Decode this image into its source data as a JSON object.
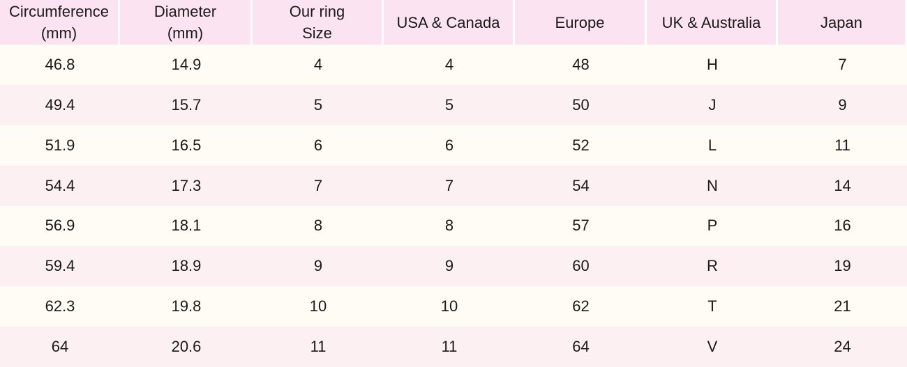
{
  "table": {
    "headers": [
      [
        "Circumference",
        "(mm)"
      ],
      [
        "Diameter",
        "(mm)"
      ],
      [
        "Our ring",
        "Size"
      ],
      [
        "USA & Canada"
      ],
      [
        "Europe"
      ],
      [
        "UK & Australia"
      ],
      [
        "Japan"
      ]
    ],
    "rows": [
      [
        46.8,
        14.9,
        4,
        4,
        48,
        "H",
        7
      ],
      [
        49.4,
        15.7,
        5,
        5,
        50,
        "J",
        9
      ],
      [
        51.9,
        16.5,
        6,
        6,
        52,
        "L",
        11
      ],
      [
        54.4,
        17.3,
        7,
        7,
        54,
        "N",
        14
      ],
      [
        56.9,
        18.1,
        8,
        8,
        57,
        "P",
        16
      ],
      [
        59.4,
        18.9,
        9,
        9,
        60,
        "R",
        19
      ],
      [
        62.3,
        19.8,
        10,
        10,
        62,
        "T",
        21
      ],
      [
        64,
        20.6,
        11,
        11,
        64,
        "V",
        24
      ]
    ]
  }
}
